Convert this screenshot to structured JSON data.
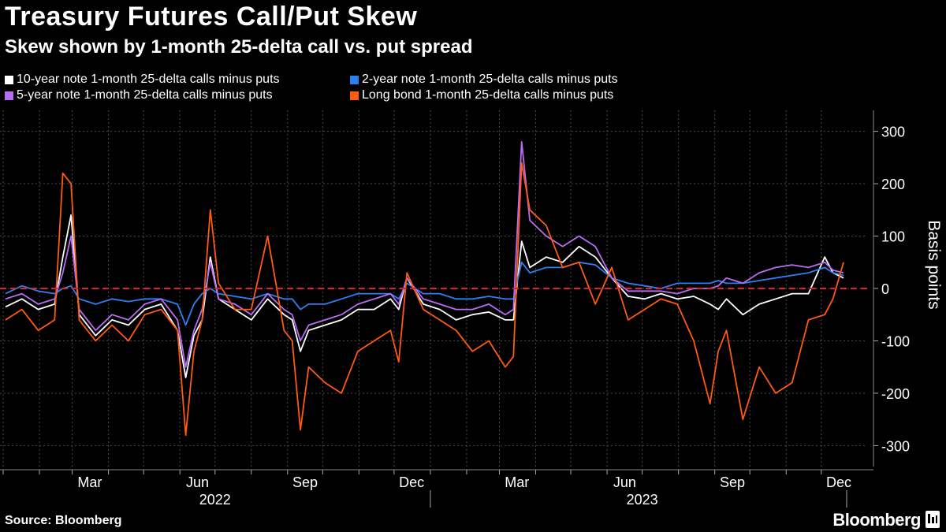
{
  "header": {
    "title": "Treasury Futures Call/Put Skew",
    "subtitle": "Skew shown by 1-month 25-delta call vs. put spread"
  },
  "footer": {
    "source": "Source: Bloomberg",
    "brand": "Bloomberg"
  },
  "colors": {
    "ten_year": "#ffffff",
    "two_year": "#2e7ff0",
    "five_year": "#b86cf2",
    "long_bond": "#ff5a10",
    "zero_line": "#e02030",
    "grid": "#4a4a4a"
  },
  "chart_data": {
    "type": "line",
    "title": "Treasury Futures Call/Put Skew",
    "subtitle": "Skew shown by 1-month 25-delta call vs. put spread",
    "ylabel": "Basis points",
    "xlabel": "",
    "ylim": [
      -340,
      340
    ],
    "yticks": [
      300,
      200,
      100,
      0,
      -100,
      -200,
      -300
    ],
    "ytick_labels": [
      "300",
      "200",
      "100",
      "0",
      "-100",
      "-200",
      "-300"
    ],
    "x_start": "2022-01",
    "x_end": "2023-12-20",
    "x_month_ticks": [
      "Mar",
      "Jun",
      "Sep",
      "Dec",
      "Mar",
      "Jun",
      "Sep",
      "Dec"
    ],
    "x_year_labels": [
      "2022",
      "2023"
    ],
    "zero_line": "dashed red",
    "legend_placement": "top-left",
    "x_dates": [
      "2022-01-03",
      "2022-01-17",
      "2022-01-31",
      "2022-02-14",
      "2022-02-21",
      "2022-02-28",
      "2022-03-07",
      "2022-03-21",
      "2022-04-04",
      "2022-04-18",
      "2022-05-02",
      "2022-05-16",
      "2022-05-30",
      "2022-06-06",
      "2022-06-13",
      "2022-06-20",
      "2022-06-27",
      "2022-07-04",
      "2022-07-18",
      "2022-08-01",
      "2022-08-15",
      "2022-08-29",
      "2022-09-05",
      "2022-09-12",
      "2022-09-19",
      "2022-10-03",
      "2022-10-17",
      "2022-10-31",
      "2022-11-14",
      "2022-11-28",
      "2022-12-05",
      "2022-12-12",
      "2022-12-26",
      "2023-01-09",
      "2023-01-23",
      "2023-02-06",
      "2023-02-20",
      "2023-03-06",
      "2023-03-13",
      "2023-03-20",
      "2023-03-27",
      "2023-04-10",
      "2023-04-24",
      "2023-05-08",
      "2023-05-22",
      "2023-06-05",
      "2023-06-19",
      "2023-07-03",
      "2023-07-17",
      "2023-07-31",
      "2023-08-14",
      "2023-08-28",
      "2023-09-04",
      "2023-09-11",
      "2023-09-25",
      "2023-10-09",
      "2023-10-23",
      "2023-11-06",
      "2023-11-20",
      "2023-12-04",
      "2023-12-11",
      "2023-12-20"
    ],
    "series": [
      {
        "name": "10-year note 1-month 25-delta calls minus puts",
        "color": "#ffffff",
        "values": [
          -35,
          -20,
          -40,
          -30,
          60,
          140,
          -50,
          -90,
          -60,
          -70,
          -40,
          -30,
          -80,
          -170,
          -90,
          -60,
          60,
          -20,
          -40,
          -60,
          -20,
          -50,
          -60,
          -120,
          -80,
          -70,
          -60,
          -40,
          -40,
          -20,
          -40,
          20,
          -30,
          -40,
          -60,
          -50,
          -45,
          -60,
          -60,
          90,
          40,
          60,
          50,
          80,
          60,
          20,
          -15,
          -20,
          -10,
          -20,
          -15,
          -30,
          -40,
          -20,
          -50,
          -30,
          -20,
          -10,
          -10,
          60,
          30,
          20
        ]
      },
      {
        "name": "2-year note 1-month 25-delta calls minus puts",
        "color": "#2e7ff0",
        "values": [
          -10,
          5,
          -5,
          -10,
          0,
          5,
          -20,
          -30,
          -20,
          -25,
          -20,
          -20,
          -30,
          -70,
          -30,
          -10,
          0,
          -10,
          -15,
          -20,
          -10,
          -20,
          -20,
          -40,
          -30,
          -30,
          -20,
          -10,
          -10,
          -10,
          -20,
          10,
          -10,
          -10,
          -20,
          -20,
          -15,
          -20,
          -20,
          50,
          30,
          40,
          40,
          50,
          45,
          20,
          10,
          5,
          0,
          10,
          10,
          10,
          15,
          10,
          10,
          15,
          20,
          25,
          30,
          40,
          30,
          25
        ]
      },
      {
        "name": "5-year note 1-month 25-delta calls minus puts",
        "color": "#b86cf2",
        "values": [
          -20,
          -10,
          -30,
          -20,
          30,
          100,
          -40,
          -80,
          -50,
          -60,
          -30,
          -20,
          -60,
          -150,
          -80,
          -40,
          50,
          -20,
          -30,
          -50,
          -10,
          -40,
          -50,
          -100,
          -70,
          -60,
          -50,
          -30,
          -20,
          -10,
          -30,
          20,
          -20,
          -30,
          -40,
          -40,
          -30,
          -50,
          -40,
          280,
          130,
          100,
          80,
          100,
          80,
          20,
          -5,
          -5,
          -5,
          -10,
          0,
          0,
          5,
          20,
          10,
          30,
          40,
          45,
          40,
          50,
          35,
          30
        ]
      },
      {
        "name": "Long bond 1-month 25-delta calls minus puts",
        "color": "#ff5a10",
        "values": [
          -60,
          -40,
          -80,
          -60,
          220,
          200,
          -60,
          -100,
          -70,
          -100,
          -50,
          -40,
          -80,
          -280,
          -120,
          -60,
          150,
          10,
          -40,
          -40,
          100,
          -80,
          -100,
          -270,
          -150,
          -180,
          -200,
          -120,
          -100,
          -80,
          -140,
          30,
          -40,
          -60,
          -80,
          -120,
          -100,
          -150,
          -130,
          240,
          150,
          120,
          40,
          50,
          -30,
          40,
          -60,
          -40,
          -20,
          -30,
          -100,
          -220,
          -120,
          -80,
          -250,
          -150,
          -200,
          -180,
          -60,
          -50,
          -20,
          50
        ]
      }
    ]
  }
}
